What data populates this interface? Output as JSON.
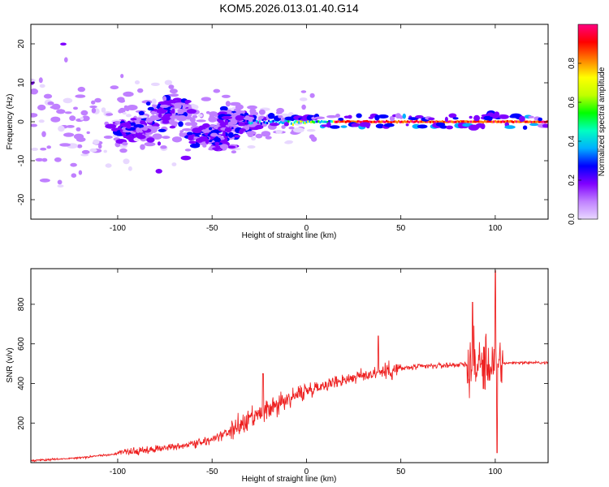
{
  "title": "KOM5.2026.013.01.40.G14",
  "chart_data": [
    {
      "type": "heatmap",
      "xlabel": "Height of straight line (km)",
      "ylabel": "Frequency (Hz)",
      "xlim": [
        -146,
        128
      ],
      "ylim": [
        -25,
        25
      ],
      "xticks": [
        -100,
        -50,
        0,
        50,
        100
      ],
      "yticks": [
        -20,
        -10,
        0,
        10,
        20
      ],
      "colorbar": {
        "label": "Normalized spectral amplitude",
        "range": [
          0,
          1
        ],
        "ticks": [
          "0.0",
          "0.2",
          "0.4",
          "0.6",
          "0.8"
        ],
        "tick_values": [
          0.0,
          0.2,
          0.4,
          0.6,
          0.8
        ],
        "colormap": [
          "#e8d8ff",
          "#c080ff",
          "#8000ff",
          "#0000ff",
          "#00b0ff",
          "#00ffc0",
          "#00ff00",
          "#c0ff00",
          "#ffff00",
          "#ff8000",
          "#ff0000",
          "#ff0080"
        ]
      },
      "carrier_frequency": 0,
      "dense_cluster_centers": [
        {
          "x": -72,
          "y": 3
        },
        {
          "x": -90,
          "y": -2
        },
        {
          "x": -50,
          "y": -4
        },
        {
          "x": -38,
          "y": 0
        }
      ]
    },
    {
      "type": "line",
      "xlabel": "Height of straight line (km)",
      "ylabel": "SNR (v/v)",
      "xlim": [
        -146,
        128
      ],
      "ylim": [
        0,
        980
      ],
      "xticks": [
        -100,
        -50,
        0,
        50,
        100
      ],
      "yticks": [
        200,
        400,
        600,
        800
      ],
      "line_color": "#ee2222",
      "trend": [
        {
          "x": -146,
          "y": 10
        },
        {
          "x": -120,
          "y": 25
        },
        {
          "x": -100,
          "y": 45
        },
        {
          "x": -80,
          "y": 70
        },
        {
          "x": -60,
          "y": 95
        },
        {
          "x": -50,
          "y": 115
        },
        {
          "x": -40,
          "y": 160
        },
        {
          "x": -30,
          "y": 210
        },
        {
          "x": -20,
          "y": 265
        },
        {
          "x": -10,
          "y": 320
        },
        {
          "x": 0,
          "y": 365
        },
        {
          "x": 10,
          "y": 395
        },
        {
          "x": 20,
          "y": 420
        },
        {
          "x": 30,
          "y": 440
        },
        {
          "x": 40,
          "y": 460
        },
        {
          "x": 50,
          "y": 475
        },
        {
          "x": 60,
          "y": 485
        },
        {
          "x": 70,
          "y": 490
        },
        {
          "x": 80,
          "y": 495
        },
        {
          "x": 90,
          "y": 495
        },
        {
          "x": 100,
          "y": 500
        },
        {
          "x": 110,
          "y": 505
        },
        {
          "x": 128,
          "y": 505
        }
      ],
      "peaks": [
        {
          "x": -23,
          "y": 450
        },
        {
          "x": 38,
          "y": 640
        },
        {
          "x": 88,
          "y": 810
        },
        {
          "x": 100,
          "y": 970
        },
        {
          "x": 101,
          "y": 50
        }
      ]
    }
  ]
}
